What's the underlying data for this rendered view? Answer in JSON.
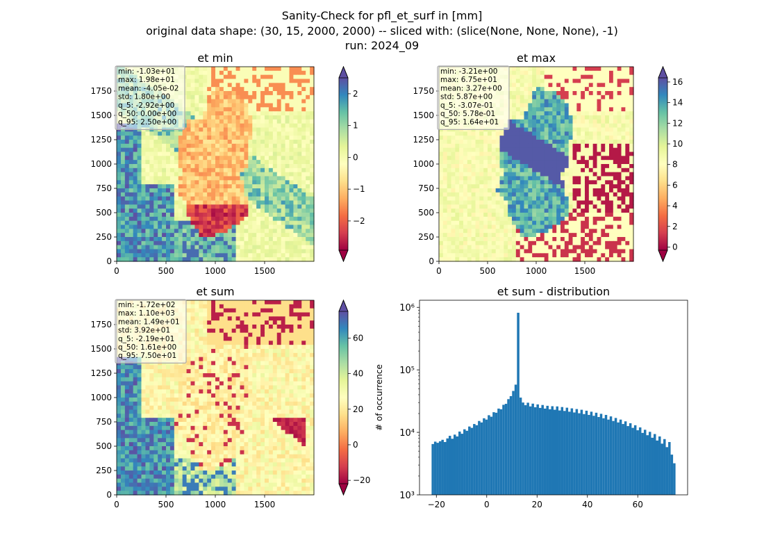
{
  "figure": {
    "title_lines": [
      "Sanity-Check for pfl_et_surf in [mm]",
      "original data shape: (30, 15, 2000, 2000) -- sliced with: (slice(None, None, None), -1)",
      "run: 2024_09"
    ]
  },
  "chart_data": [
    {
      "type": "heatmap",
      "title": "et min",
      "colormap": "Spectral",
      "xlim": [
        0,
        2000
      ],
      "ylim": [
        0,
        2000
      ],
      "xticks": [
        0,
        500,
        1000,
        1500
      ],
      "yticks": [
        0,
        250,
        500,
        750,
        1000,
        1250,
        1500,
        1750
      ],
      "colorbar": {
        "ticks": [
          -2,
          -1,
          0,
          1,
          2
        ],
        "tick_labels": [
          "−2",
          "−1",
          "0",
          "1",
          "2"
        ],
        "range": [
          -2.92,
          2.5
        ],
        "extend": "both"
      },
      "stats": [
        "min: -1.03e+01",
        "max: 1.98e+01",
        "mean: -4.05e-02",
        "std: 1.80e+00",
        "q_5: -2.92e+00",
        "q_50: 0.00e+00",
        "q_95: 2.50e+00"
      ]
    },
    {
      "type": "heatmap",
      "title": "et max",
      "colormap": "Spectral",
      "xlim": [
        0,
        2000
      ],
      "ylim": [
        0,
        2000
      ],
      "xticks": [
        0,
        500,
        1000,
        1500
      ],
      "yticks": [
        0,
        250,
        500,
        750,
        1000,
        1250,
        1500,
        1750
      ],
      "colorbar": {
        "ticks": [
          0,
          2,
          4,
          6,
          8,
          10,
          12,
          14,
          16
        ],
        "tick_labels": [
          "0",
          "2",
          "4",
          "6",
          "8",
          "10",
          "12",
          "14",
          "16"
        ],
        "range": [
          -0.307,
          16.4
        ],
        "extend": "both"
      },
      "stats": [
        "min: -3.21e+00",
        "max: 6.75e+01",
        "mean: 3.27e+00",
        "std: 5.87e+00",
        "q_5: -3.07e-01",
        "q_50: 5.78e-01",
        "q_95: 1.64e+01"
      ]
    },
    {
      "type": "heatmap",
      "title": "et sum",
      "colormap": "Spectral",
      "xlim": [
        0,
        2000
      ],
      "ylim": [
        0,
        2000
      ],
      "xticks": [
        0,
        500,
        1000,
        1500
      ],
      "yticks": [
        0,
        250,
        500,
        750,
        1000,
        1250,
        1500,
        1750
      ],
      "colorbar": {
        "ticks": [
          -20,
          0,
          20,
          40,
          60
        ],
        "tick_labels": [
          "−20",
          "0",
          "20",
          "40",
          "60"
        ],
        "range": [
          -21.9,
          75.0
        ],
        "extend": "both"
      },
      "stats": [
        "min: -1.72e+02",
        "max: 1.10e+03",
        "mean: 1.49e+01",
        "std: 3.92e+01",
        "q_5: -2.19e+01",
        "q_50: 1.61e+00",
        "q_95: 7.50e+01"
      ]
    },
    {
      "type": "bar",
      "title": "et sum - distribution",
      "ylabel": "# of occurrence",
      "xlabel": "",
      "yscale": "log",
      "xlim": [
        -26.7,
        79.8
      ],
      "ylim": [
        1000,
        1300000
      ],
      "xticks": [
        -20,
        0,
        20,
        40,
        60
      ],
      "xtick_labels": [
        "−20",
        "0",
        "20",
        "40",
        "60"
      ],
      "yticks": [
        1000,
        10000,
        100000,
        1000000
      ],
      "ytick_labels": [
        "10³",
        "10⁴",
        "10⁵",
        "10⁶"
      ],
      "color": "#1f77b4",
      "bins": {
        "start": -21.9,
        "end": 75.0,
        "count": 100
      },
      "values": [
        6500,
        7100,
        6800,
        7200,
        7600,
        7000,
        8000,
        8800,
        7900,
        9200,
        8600,
        10300,
        9500,
        11200,
        10600,
        12400,
        11800,
        13600,
        13000,
        15200,
        14400,
        16800,
        16000,
        18800,
        17800,
        21000,
        20600,
        24000,
        23400,
        27600,
        28600,
        34000,
        38000,
        46000,
        58000,
        820000,
        36000,
        30000,
        27200,
        29800,
        26000,
        28800,
        25200,
        28000,
        24600,
        27400,
        24000,
        26600,
        23400,
        26200,
        23000,
        26000,
        22400,
        25400,
        22000,
        24800,
        21400,
        24200,
        20800,
        23600,
        20200,
        23000,
        19600,
        22200,
        19000,
        21400,
        18400,
        20600,
        17600,
        19800,
        16800,
        19000,
        16000,
        18000,
        15200,
        17000,
        14400,
        16000,
        13600,
        15000,
        12600,
        14000,
        11800,
        13000,
        10800,
        12000,
        9800,
        11000,
        9000,
        10200,
        8200,
        9400,
        7400,
        8600,
        6600,
        7800,
        5800,
        7000,
        4400,
        3200
      ]
    }
  ]
}
